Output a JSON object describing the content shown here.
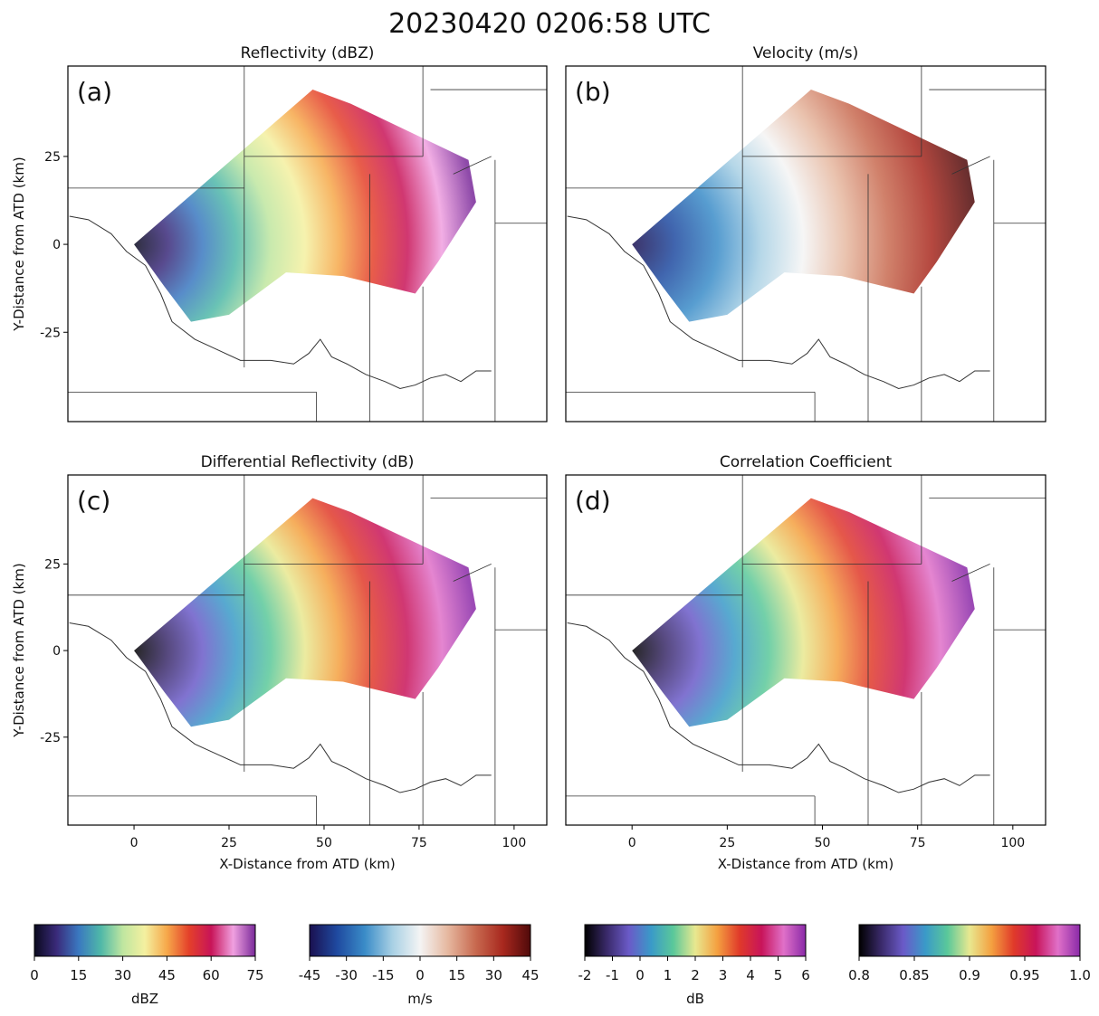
{
  "title": "20230420 0206:58 UTC",
  "chart_data": [
    {
      "type": "map",
      "title": "Reflectivity (dBZ)",
      "panel_label": "(a)",
      "ylabel": "Y-Distance from ATD (km)",
      "xlim": [
        -17.4,
        108.6
      ],
      "ylim": [
        -50.4,
        50.7
      ],
      "yticks": [
        -25,
        0,
        25
      ],
      "colorbar": {
        "label": "dBZ",
        "lim": [
          0,
          75
        ],
        "ticks": [
          0,
          15,
          30,
          45,
          60,
          75
        ],
        "colors": [
          "#0a0a1e",
          "#3a2a7a",
          "#3a78c0",
          "#4fb8a8",
          "#bfe6a0",
          "#f4f0a0",
          "#f6a84a",
          "#e4402a",
          "#c81458",
          "#f0a0e0",
          "#7a2a9a"
        ]
      }
    },
    {
      "type": "map",
      "title": "Velocity (m/s)",
      "panel_label": "(b)",
      "xlim": [
        -17.4,
        108.6
      ],
      "ylim": [
        -50.4,
        50.7
      ],
      "colorbar": {
        "label": "m/s",
        "lim": [
          -45,
          45
        ],
        "ticks": [
          -45,
          -30,
          -15,
          0,
          15,
          30,
          45
        ],
        "colors": [
          "#1a1050",
          "#1f4aa0",
          "#3a8cc8",
          "#a8d0e4",
          "#f4f4f4",
          "#e6b8a0",
          "#c86a50",
          "#a8281e",
          "#500a0a"
        ]
      }
    },
    {
      "type": "map",
      "title": "Differential Reflectivity (dB)",
      "panel_label": "(c)",
      "ylabel": "Y-Distance from ATD (km)",
      "xlabel": "X-Distance from ATD (km)",
      "xlim": [
        -17.4,
        108.6
      ],
      "ylim": [
        -50.4,
        50.7
      ],
      "yticks": [
        -25,
        0,
        25
      ],
      "xticks": [
        0,
        25,
        50,
        75,
        100
      ],
      "colorbar": {
        "label": "dB",
        "lim": [
          -2,
          6
        ],
        "ticks": [
          -2,
          -1,
          0,
          1,
          2,
          3,
          4,
          5,
          6
        ],
        "colors": [
          "#000000",
          "#3a2a6a",
          "#6a5ac8",
          "#3a9ac8",
          "#5ac89a",
          "#e8e890",
          "#f4a040",
          "#e03a2a",
          "#c8145a",
          "#e070c8",
          "#8a2aa8"
        ]
      }
    },
    {
      "type": "map",
      "title": "Correlation Coefficient",
      "panel_label": "(d)",
      "xlabel": "X-Distance from ATD (km)",
      "xlim": [
        -17.4,
        108.6
      ],
      "ylim": [
        -50.4,
        50.7
      ],
      "xticks": [
        0,
        25,
        50,
        75,
        100
      ],
      "colorbar": {
        "label": null,
        "lim": [
          0.8,
          1
        ],
        "ticks": [
          0.8,
          0.85,
          0.9,
          0.95,
          {
            "value": 1,
            "label": "1.0"
          }
        ],
        "colors": [
          "#000000",
          "#3a2a6a",
          "#6a5ac8",
          "#3a9ac8",
          "#5ac89a",
          "#e8e890",
          "#f4a040",
          "#e03a2a",
          "#c8145a",
          "#e070c8",
          "#8a2aa8"
        ]
      }
    }
  ]
}
